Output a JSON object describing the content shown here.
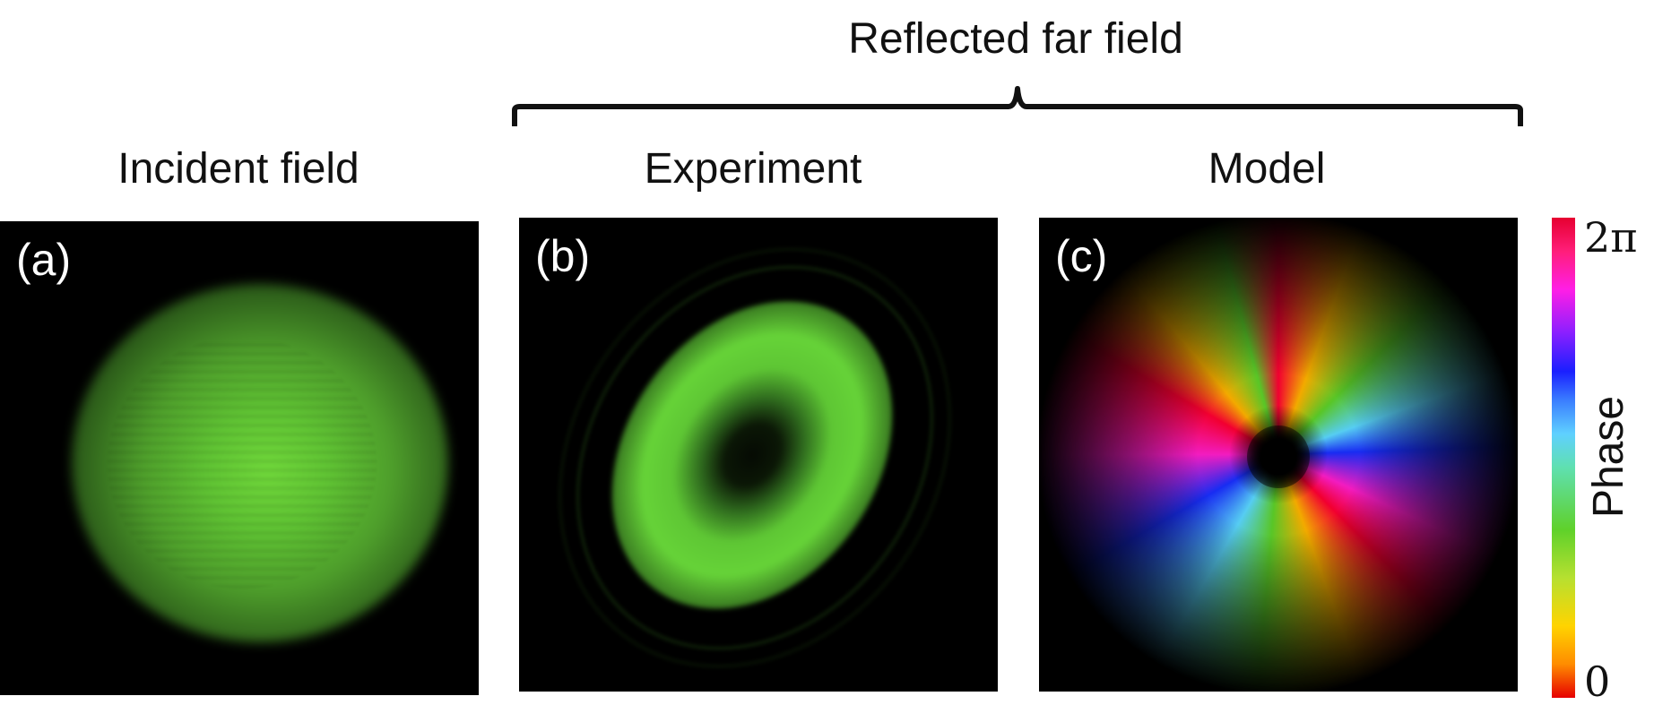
{
  "headings": {
    "group_title": "Reflected far field",
    "incident": "Incident field",
    "experiment": "Experiment",
    "model": "Model"
  },
  "panels": [
    {
      "label": "(a)"
    },
    {
      "label": "(b)"
    },
    {
      "label": "(c)"
    }
  ],
  "colorbar": {
    "title": "Phase",
    "max_label": "2π",
    "min_label": "0"
  },
  "colors": {
    "field_green": "#5fc233",
    "background": "#000000"
  }
}
